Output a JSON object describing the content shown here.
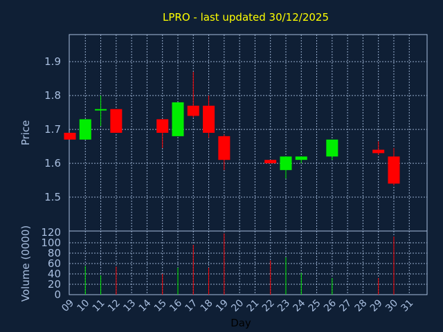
{
  "chart_data": {
    "type": "candlestick",
    "title": "LPRO - last updated 30/12/2025",
    "ylabel_price": "Price",
    "ylabel_volume": "Volume (0000)",
    "xlabel": "Day",
    "price_ylim": [
      1.4,
      1.98
    ],
    "price_ticks": [
      "1.5",
      "1.6",
      "1.7",
      "1.8",
      "1.9"
    ],
    "volume_ylim": [
      0,
      120
    ],
    "volume_ticks": [
      "0",
      "20",
      "40",
      "60",
      "80",
      "100",
      "120"
    ],
    "x_ticks": [
      "09",
      "10",
      "11",
      "12",
      "13",
      "14",
      "15",
      "16",
      "17",
      "18",
      "19",
      "20",
      "21",
      "22",
      "23",
      "24",
      "25",
      "26",
      "27",
      "28",
      "29",
      "30",
      "31"
    ],
    "grid": true,
    "colors": {
      "up": "#00ee00",
      "down": "#ff0000",
      "title": "#ffff00",
      "background": "#0f1f35",
      "grid": "#a9bfe0"
    },
    "candles": [
      {
        "day": "09",
        "open": 1.69,
        "high": 1.69,
        "low": 1.67,
        "close": 1.67,
        "volume": 0
      },
      {
        "day": "10",
        "open": 1.67,
        "high": 1.73,
        "low": 1.67,
        "close": 1.73,
        "volume": 55
      },
      {
        "day": "11",
        "open": 1.76,
        "high": 1.8,
        "low": 1.71,
        "close": 1.76,
        "volume": 37
      },
      {
        "day": "12",
        "open": 1.76,
        "high": 1.76,
        "low": 1.69,
        "close": 1.69,
        "volume": 54
      },
      {
        "day": "15",
        "open": 1.73,
        "high": 1.73,
        "low": 1.645,
        "close": 1.69,
        "volume": 40
      },
      {
        "day": "16",
        "open": 1.68,
        "high": 1.78,
        "low": 1.68,
        "close": 1.78,
        "volume": 52
      },
      {
        "day": "17",
        "open": 1.77,
        "high": 1.87,
        "low": 1.735,
        "close": 1.74,
        "volume": 96
      },
      {
        "day": "18",
        "open": 1.77,
        "high": 1.8,
        "low": 1.675,
        "close": 1.69,
        "volume": 52
      },
      {
        "day": "19",
        "open": 1.68,
        "high": 1.685,
        "low": 1.58,
        "close": 1.61,
        "volume": 118
      },
      {
        "day": "22",
        "open": 1.61,
        "high": 1.61,
        "low": 1.6,
        "close": 1.6,
        "volume": 66
      },
      {
        "day": "23",
        "open": 1.58,
        "high": 1.62,
        "low": 1.555,
        "close": 1.62,
        "volume": 72
      },
      {
        "day": "24",
        "open": 1.61,
        "high": 1.62,
        "low": 1.6,
        "close": 1.62,
        "volume": 42
      },
      {
        "day": "26",
        "open": 1.62,
        "high": 1.67,
        "low": 1.61,
        "close": 1.67,
        "volume": 32
      },
      {
        "day": "29",
        "open": 1.64,
        "high": 1.665,
        "low": 1.625,
        "close": 1.63,
        "volume": 32
      },
      {
        "day": "30",
        "open": 1.62,
        "high": 1.645,
        "low": 1.535,
        "close": 1.54,
        "volume": 112
      }
    ]
  }
}
